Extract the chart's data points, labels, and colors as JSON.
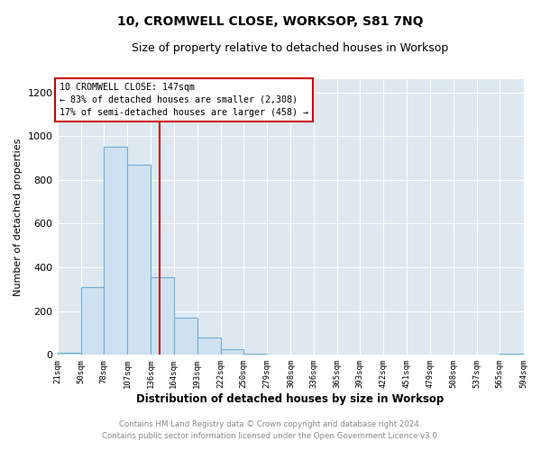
{
  "title": "10, CROMWELL CLOSE, WORKSOP, S81 7NQ",
  "subtitle": "Size of property relative to detached houses in Worksop",
  "xlabel": "Distribution of detached houses by size in Worksop",
  "ylabel": "Number of detached properties",
  "bin_edges": [
    21,
    50,
    78,
    107,
    136,
    164,
    193,
    222,
    250,
    279,
    308,
    336,
    365,
    393,
    422,
    451,
    479,
    508,
    537,
    565,
    594
  ],
  "bar_heights": [
    10,
    308,
    950,
    868,
    355,
    170,
    80,
    25,
    5,
    1,
    0,
    0,
    0,
    0,
    0,
    0,
    0,
    0,
    0,
    5
  ],
  "bar_color": "#cfe0f0",
  "bar_edgecolor": "#6baed6",
  "property_size": 147,
  "red_line_color": "#cc0000",
  "annotation_text_line1": "10 CROMWELL CLOSE: 147sqm",
  "annotation_text_line2": "← 83% of detached houses are smaller (2,308)",
  "annotation_text_line3": "17% of semi-detached houses are larger (458) →",
  "annotation_box_color": "#cc0000",
  "annotation_fill_color": "#ffffff",
  "ylim": [
    0,
    1260
  ],
  "yticks": [
    0,
    200,
    400,
    600,
    800,
    1000,
    1200
  ],
  "plot_bg_color": "#dde8f0",
  "fig_bg_color": "#ffffff",
  "grid_color": "#ffffff",
  "footer_line1": "Contains HM Land Registry data © Crown copyright and database right 2024.",
  "footer_line2": "Contains public sector information licensed under the Open Government Licence v3.0.",
  "footer_color": "#888888"
}
